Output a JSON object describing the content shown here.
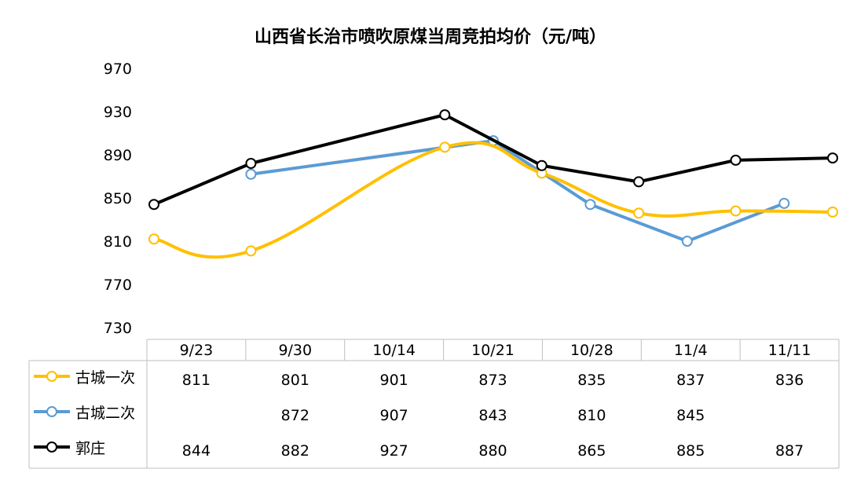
{
  "chart_data": {
    "type": "line",
    "title": "山西省长治市喷吹原煤当周竞拍均价（元/吨）",
    "categories": [
      "9/23",
      "9/30",
      "10/14",
      "10/21",
      "10/28",
      "11/4",
      "11/11"
    ],
    "ylim": [
      730,
      970
    ],
    "yticks": [
      970,
      930,
      890,
      850,
      810,
      770,
      730
    ],
    "series": [
      {
        "name": "古城一次",
        "color": "#FFC000",
        "smooth": true,
        "values": [
          811,
          801,
          901,
          873,
          835,
          837,
          836
        ],
        "plot_values": [
          812,
          801,
          897,
          873,
          836,
          838,
          837
        ]
      },
      {
        "name": "古城二次",
        "color": "#5B9BD5",
        "smooth": false,
        "values": [
          null,
          872,
          907,
          843,
          810,
          845,
          null
        ],
        "plot_x": [
          1,
          3.5,
          4.5,
          5.5,
          6.5
        ],
        "plot_values": [
          872,
          903,
          844,
          810,
          845
        ]
      },
      {
        "name": "郭庄",
        "color": "#000000",
        "smooth": false,
        "values": [
          844,
          882,
          927,
          880,
          865,
          885,
          887
        ],
        "plot_x": [
          0,
          1,
          3,
          4,
          5,
          6,
          7
        ],
        "plot_values": [
          844,
          882,
          927,
          880,
          865,
          885,
          887
        ]
      }
    ]
  }
}
